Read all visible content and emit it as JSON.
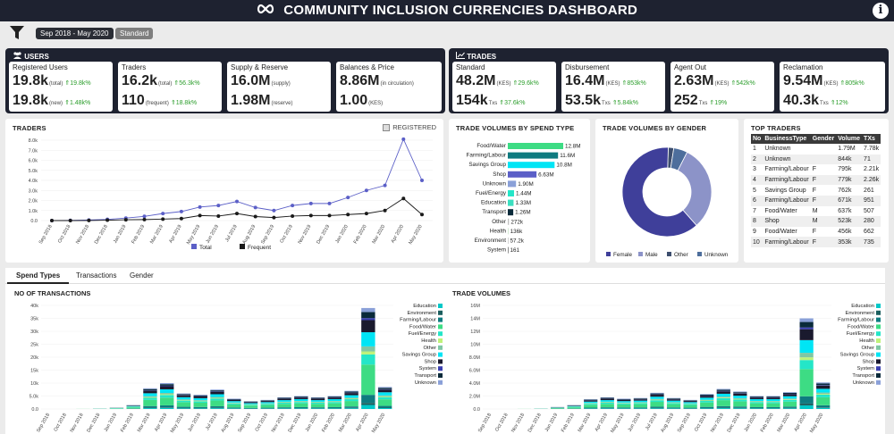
{
  "header": {
    "title": "COMMUNITY INCLUSION CURRENCIES DASHBOARD",
    "info_label": "i"
  },
  "filters": {
    "date_range": "Sep 2018 - May 2020",
    "mode": "Standard"
  },
  "users": {
    "title": "USERS",
    "registered": {
      "label": "Registered Users",
      "v1": "19.8k",
      "s1": "(total)",
      "d1": "19.8k%",
      "v2": "19.8k",
      "s2": "(new)",
      "d2": "1.48k%"
    },
    "traders": {
      "label": "Traders",
      "v1": "16.2k",
      "s1": "(total)",
      "d1": "56.3k%",
      "v2": "110",
      "s2": "(frequent)",
      "d2": "18.8k%"
    },
    "supply": {
      "label": "Supply & Reserve",
      "v1": "16.0M",
      "s1": "(supply)",
      "v2": "1.98M",
      "s2": "(reserve)"
    },
    "balances": {
      "label": "Balances & Price",
      "v1": "8.86M",
      "s1": "(in circulation)",
      "v2": "1.00",
      "s2": "(KES)"
    }
  },
  "trades": {
    "title": "TRADES",
    "standard": {
      "label": "Standard",
      "v1": "48.2M",
      "s1": "(KES)",
      "d1": "29.6k%",
      "v2": "154k",
      "s2": "Txs",
      "d2": "37.6k%"
    },
    "disbursement": {
      "label": "Disbursement",
      "v1": "16.4M",
      "s1": "(KES)",
      "d1": "853k%",
      "v2": "53.5k",
      "s2": "Txs",
      "d2": "5.84k%"
    },
    "agent_out": {
      "label": "Agent Out",
      "v1": "2.63M",
      "s1": "(KES)",
      "d1": "542k%",
      "v2": "252",
      "s2": "Txs",
      "d2": "19%"
    },
    "reclamation": {
      "label": "Reclamation",
      "v1": "9.54M",
      "s1": "(KES)",
      "d1": "805k%",
      "v2": "40.3k",
      "s2": "Txs",
      "d2": "12%"
    }
  },
  "chart_data": [
    {
      "type": "line",
      "title": "TRADERS",
      "toggle_label": "REGISTERED",
      "x": [
        "Sep 2018",
        "Oct 2018",
        "Nov 2018",
        "Dec 2018",
        "Jan 2019",
        "Feb 2019",
        "Mar 2019",
        "Apr 2019",
        "May 2019",
        "Jun 2019",
        "Jul 2019",
        "Aug 2019",
        "Sep 2019",
        "Oct 2019",
        "Nov 2019",
        "Dec 2019",
        "Jan 2020",
        "Feb 2020",
        "Mar 2020",
        "Apr 2020",
        "May 2020"
      ],
      "series": [
        {
          "name": "Total",
          "color": "#5b5fc7",
          "values": [
            0,
            20,
            60,
            120,
            250,
            420,
            700,
            900,
            1350,
            1500,
            1900,
            1300,
            1000,
            1500,
            1700,
            1700,
            2300,
            3000,
            3500,
            8100,
            4000
          ]
        },
        {
          "name": "Frequent",
          "color": "#1a1a1a",
          "values": [
            0,
            0,
            10,
            40,
            80,
            100,
            150,
            200,
            500,
            450,
            700,
            400,
            300,
            450,
            500,
            500,
            600,
            700,
            1000,
            2200,
            600
          ]
        }
      ],
      "ylim": [
        0,
        8000
      ],
      "yticks": [
        "0.0",
        "1.0k",
        "2.0k",
        "3.0k",
        "4.0k",
        "5.0k",
        "6.0k",
        "7.0k",
        "8.0k"
      ],
      "legend": "bottom"
    },
    {
      "type": "bar",
      "title": "TRADE VOLUMES BY SPEND TYPE",
      "categories": [
        "Food/Water",
        "Farming/Labour",
        "Savings Group",
        "Shop",
        "Unknown",
        "Fuel/Energy",
        "Education",
        "Transport",
        "Other",
        "Health",
        "Environment",
        "System"
      ],
      "values": [
        12800000,
        11600000,
        10800000,
        6630000,
        1900000,
        1440000,
        1330000,
        1260000,
        272000,
        136000,
        57200,
        161
      ],
      "labels": [
        "12.8M",
        "11.6M",
        "10.8M",
        "6.63M",
        "1.90M",
        "1.44M",
        "1.33M",
        "1.26M",
        "272k",
        "136k",
        "57.2k",
        "161"
      ],
      "colors": [
        "#3ddc84",
        "#0f7b80",
        "#00e5f5",
        "#5b5fc7",
        "#8aa0d8",
        "#24e6c8",
        "#3adfc0",
        "#0a2a3a",
        "#c0c0c0",
        "#bfe0bf",
        "#aaaaaa",
        "#222222"
      ]
    },
    {
      "type": "pie",
      "title": "TRADE VOLUMES BY GENDER",
      "categories": [
        "Female",
        "Male",
        "Other",
        "Unknown"
      ],
      "values": [
        62,
        31,
        2,
        5
      ],
      "colors": [
        "#3f3f9a",
        "#8c93c8",
        "#3d4e6e",
        "#4d6e9c"
      ],
      "legend": "bottom"
    },
    {
      "type": "bar",
      "title": "NO OF TRANSACTIONS",
      "stacked": true,
      "x": [
        "Sep 2018",
        "Oct 2018",
        "Nov 2018",
        "Dec 2018",
        "Jan 2019",
        "Feb 2019",
        "Mar 2019",
        "Apr 2019",
        "May 2019",
        "Jun 2019",
        "Jul 2019",
        "Aug 2019",
        "Sep 2019",
        "Oct 2019",
        "Nov 2019",
        "Dec 2019",
        "Jan 2020",
        "Feb 2020",
        "Mar 2020",
        "Apr 2020",
        "May 2020"
      ],
      "totals": [
        0,
        50,
        100,
        200,
        500,
        1500,
        8000,
        10000,
        6000,
        5500,
        7500,
        4000,
        3000,
        3500,
        4500,
        5000,
        4500,
        5000,
        7000,
        39000,
        8500
      ],
      "ylim": [
        0,
        40000
      ],
      "yticks": [
        "0.0",
        "5.0k",
        "10k",
        "15k",
        "20k",
        "25k",
        "30k",
        "35k",
        "40k"
      ],
      "legend_items": [
        "Education",
        "Environment",
        "Farming/Labour",
        "Food/Water",
        "Fuel/Energy",
        "Health",
        "Other",
        "Savings Group",
        "Shop",
        "System",
        "Transport",
        "Unknown"
      ]
    },
    {
      "type": "bar",
      "title": "TRADE VOLUMES",
      "stacked": true,
      "x": [
        "Sep 2018",
        "Oct 2018",
        "Nov 2018",
        "Dec 2018",
        "Jan 2019",
        "Feb 2019",
        "Mar 2019",
        "Apr 2019",
        "May 2019",
        "Jun 2019",
        "Jul 2019",
        "Aug 2019",
        "Sep 2019",
        "Oct 2019",
        "Nov 2019",
        "Dec 2019",
        "Jan 2020",
        "Feb 2020",
        "Mar 2020",
        "Apr 2020",
        "May 2020"
      ],
      "totals": [
        0,
        10000,
        40000,
        80000,
        300000,
        600000,
        1500000,
        1800000,
        1600000,
        1700000,
        2500000,
        1700000,
        1400000,
        2300000,
        3100000,
        2700000,
        2000000,
        2000000,
        2600000,
        14000000,
        4100000
      ],
      "ylim": [
        0,
        16000000
      ],
      "yticks": [
        "0.0",
        "2.0M",
        "4.0M",
        "6.0M",
        "8.0M",
        "10M",
        "12M",
        "14M",
        "16M"
      ],
      "legend_items": [
        "Education",
        "Environment",
        "Farming/Labour",
        "Food/Water",
        "Fuel/Energy",
        "Health",
        "Other",
        "Savings Group",
        "Shop",
        "System",
        "Transport",
        "Unknown"
      ]
    }
  ],
  "legend_colors": [
    "#00c8c8",
    "#1b5e5e",
    "#0f7b80",
    "#3ddc84",
    "#24e6c8",
    "#bff27a",
    "#7fc7a5",
    "#00e5f5",
    "#1a1a2e",
    "#3a3fb0",
    "#0a2a3a",
    "#8aa0d8"
  ],
  "top_traders": {
    "title": "TOP TRADERS",
    "headers": [
      "No",
      "BusinessType",
      "Gender",
      "Volume",
      "TXs"
    ],
    "rows": [
      [
        "1",
        "Unknown",
        "",
        "1.79M",
        "7.78k"
      ],
      [
        "2",
        "Unknown",
        "",
        "844k",
        "71"
      ],
      [
        "3",
        "Farming/Labour",
        "F",
        "795k",
        "2.21k"
      ],
      [
        "4",
        "Farming/Labour",
        "F",
        "779k",
        "2.26k"
      ],
      [
        "5",
        "Savings Group",
        "F",
        "762k",
        "261"
      ],
      [
        "6",
        "Farming/Labour",
        "F",
        "671k",
        "951"
      ],
      [
        "7",
        "Food/Water",
        "M",
        "637k",
        "507"
      ],
      [
        "8",
        "Shop",
        "M",
        "523k",
        "280"
      ],
      [
        "9",
        "Food/Water",
        "F",
        "456k",
        "662"
      ],
      [
        "10",
        "Farming/Labour",
        "F",
        "353k",
        "735"
      ]
    ]
  },
  "tabs": [
    "Spend Types",
    "Transactions",
    "Gender"
  ]
}
